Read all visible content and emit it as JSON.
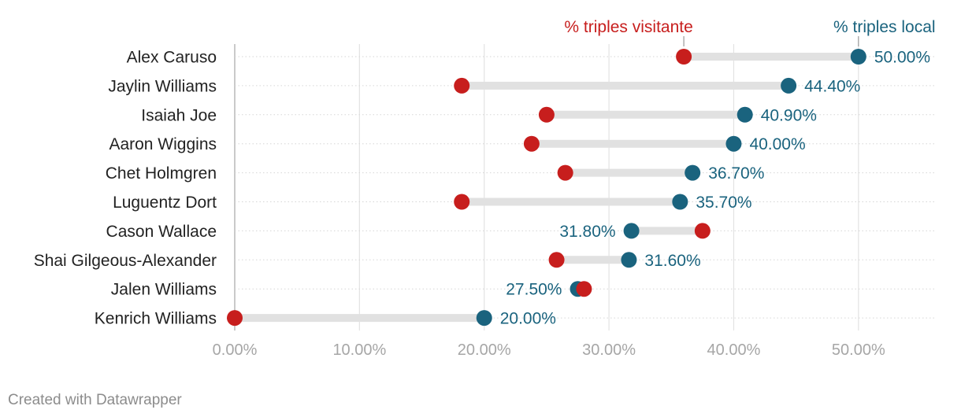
{
  "chart_data": {
    "type": "dot-range",
    "series": [
      {
        "name": "% triples visitante",
        "color": "#c71e1d"
      },
      {
        "name": "% triples local",
        "color": "#1a637e"
      }
    ],
    "players": [
      {
        "name": "Alex Caruso",
        "visitante": 36.0,
        "local": 50.0,
        "label": "50.00%"
      },
      {
        "name": "Jaylin Williams",
        "visitante": 18.2,
        "local": 44.4,
        "label": "44.40%"
      },
      {
        "name": "Isaiah Joe",
        "visitante": 25.0,
        "local": 40.9,
        "label": "40.90%"
      },
      {
        "name": "Aaron Wiggins",
        "visitante": 23.8,
        "local": 40.0,
        "label": "40.00%"
      },
      {
        "name": "Chet Holmgren",
        "visitante": 26.5,
        "local": 36.7,
        "label": "36.70%"
      },
      {
        "name": "Luguentz Dort",
        "visitante": 18.2,
        "local": 35.7,
        "label": "35.70%"
      },
      {
        "name": "Cason Wallace",
        "visitante": 37.5,
        "local": 31.8,
        "label": "31.80%"
      },
      {
        "name": "Shai Gilgeous-Alexander",
        "visitante": 25.8,
        "local": 31.6,
        "label": "31.60%"
      },
      {
        "name": "Jalen Williams",
        "visitante": 28.0,
        "local": 27.5,
        "label": "27.50%"
      },
      {
        "name": "Kenrich Williams",
        "visitante": 0.0,
        "local": 20.0,
        "label": "20.00%"
      }
    ],
    "x_ticks": [
      0,
      10,
      20,
      30,
      40,
      50
    ],
    "x_tick_labels": [
      "0.00%",
      "10.00%",
      "20.00%",
      "30.00%",
      "40.00%",
      "50.00%"
    ],
    "xlim": [
      0,
      56.2
    ],
    "legend": {
      "visitante_label": "% triples visitante",
      "local_label": "% triples local"
    }
  },
  "footer": {
    "credit": "Created with Datawrapper"
  }
}
